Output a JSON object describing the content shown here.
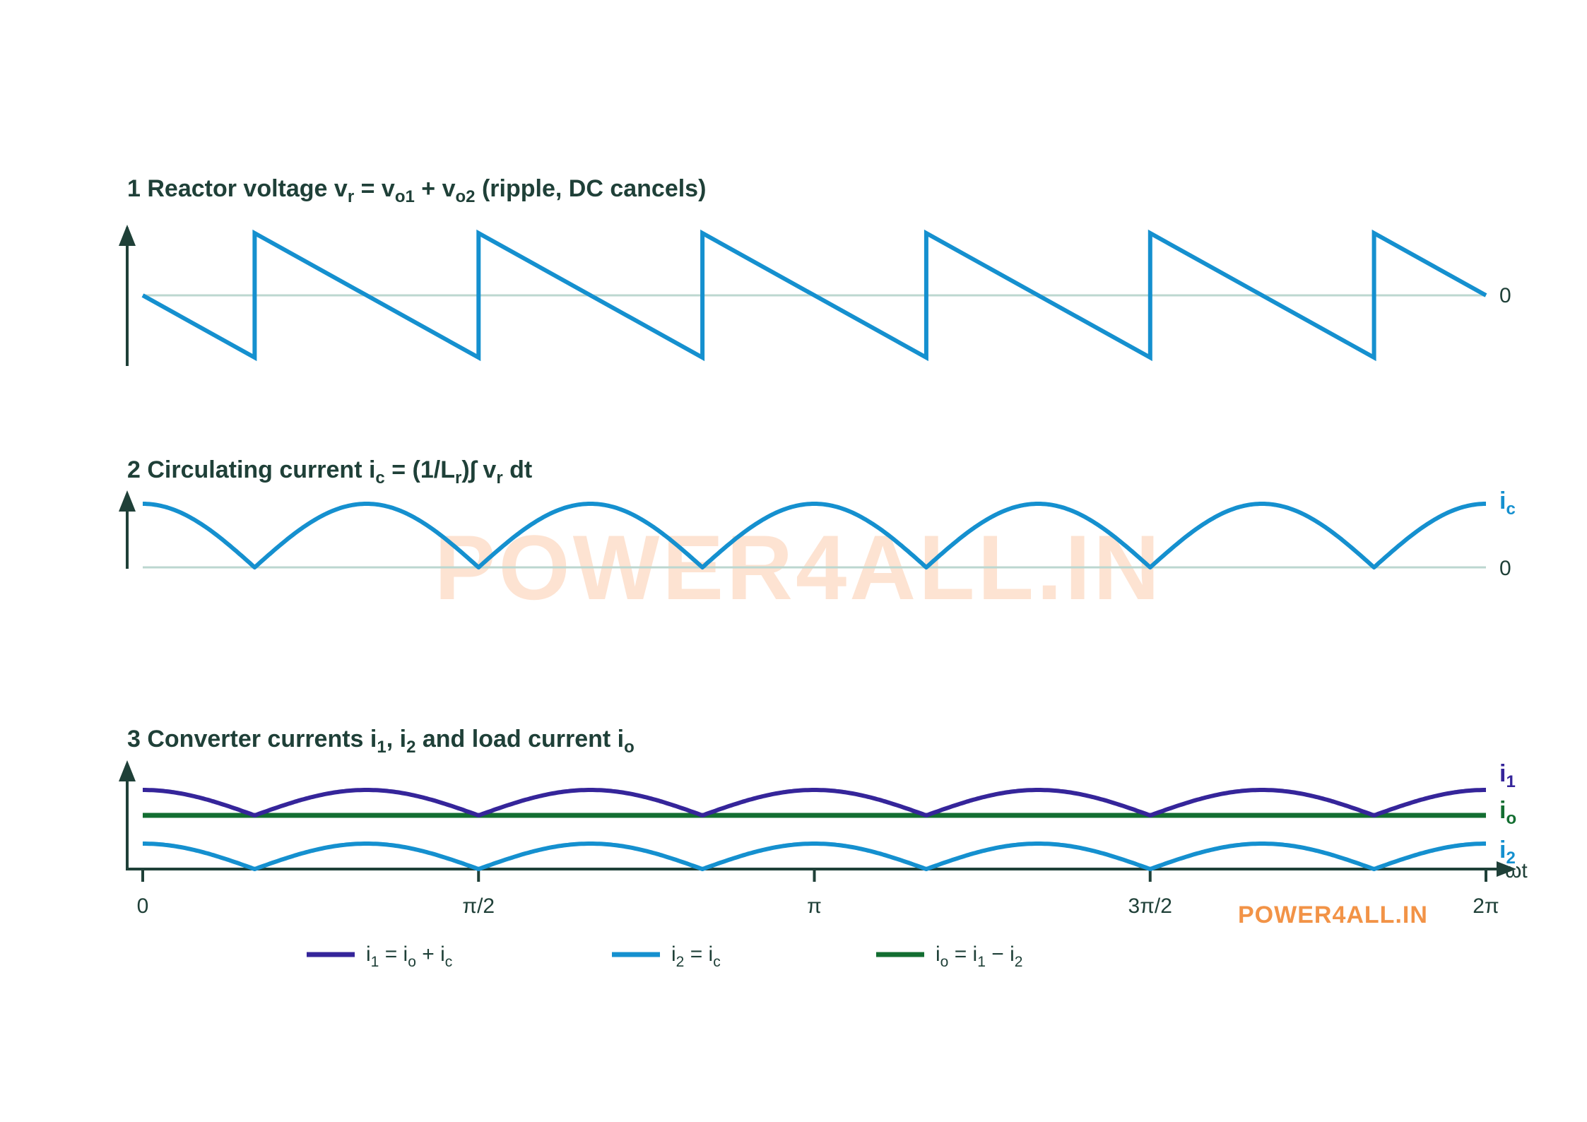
{
  "colors": {
    "axis": "#1f4038",
    "zero_line": "#bcd7d0",
    "vr": "#1590cf",
    "ic": "#1590cf",
    "i1": "#35259a",
    "i2": "#1590cf",
    "io": "#136e31",
    "title": "#1f4038",
    "watermark": "#fde3d2",
    "brand": "#f29347"
  },
  "watermark": "POWER4ALL.IN",
  "brand": "POWER4ALL.IN",
  "panels": [
    {
      "number": "1",
      "title_parts": [
        {
          "t": "Reactor voltage  v"
        },
        {
          "t": "r",
          "sub": true
        },
        {
          "t": " = v"
        },
        {
          "t": "o1",
          "sub": true
        },
        {
          "t": " + v"
        },
        {
          "t": "o2",
          "sub": true
        },
        {
          "t": " (ripple, DC cancels)"
        }
      ],
      "zero_label": "0",
      "series_label_parts": []
    },
    {
      "number": "2",
      "title_parts": [
        {
          "t": "Circulating current  i"
        },
        {
          "t": "c",
          "sub": true
        },
        {
          "t": " = (1/L"
        },
        {
          "t": "r",
          "sub": true
        },
        {
          "t": ")∫ v"
        },
        {
          "t": "r",
          "sub": true
        },
        {
          "t": " dt"
        }
      ],
      "zero_label": "0",
      "series_label_parts": [
        {
          "t": "i"
        },
        {
          "t": "c",
          "sub": true
        }
      ]
    },
    {
      "number": "3",
      "title_parts": [
        {
          "t": "Converter currents  i"
        },
        {
          "t": "1",
          "sub": true
        },
        {
          "t": ", i"
        },
        {
          "t": "2",
          "sub": true
        },
        {
          "t": " and load current  i"
        },
        {
          "t": "o",
          "sub": true
        }
      ],
      "series_labels": [
        {
          "key": "i1",
          "parts": [
            {
              "t": "i"
            },
            {
              "t": "1",
              "sub": true
            }
          ]
        },
        {
          "key": "io",
          "parts": [
            {
              "t": "i"
            },
            {
              "t": "o",
              "sub": true
            }
          ]
        },
        {
          "key": "i2",
          "parts": [
            {
              "t": "i"
            },
            {
              "t": "2",
              "sub": true
            }
          ]
        }
      ]
    }
  ],
  "x_axis": {
    "label": "ωt",
    "ticks": [
      "0",
      "π/2",
      "π",
      "3π/2",
      "2π"
    ]
  },
  "legend": [
    {
      "key": "i1",
      "parts": [
        {
          "t": "i"
        },
        {
          "t": "1",
          "sub": true
        },
        {
          "t": " = i"
        },
        {
          "t": "o",
          "sub": true
        },
        {
          "t": " + i"
        },
        {
          "t": "c",
          "sub": true
        }
      ]
    },
    {
      "key": "i2",
      "parts": [
        {
          "t": "i"
        },
        {
          "t": "2",
          "sub": true
        },
        {
          "t": " = i"
        },
        {
          "t": "c",
          "sub": true
        }
      ]
    },
    {
      "key": "io",
      "parts": [
        {
          "t": "i"
        },
        {
          "t": "o",
          "sub": true
        },
        {
          "t": " = i"
        },
        {
          "t": "1",
          "sub": true
        },
        {
          "t": " − i"
        },
        {
          "t": "2",
          "sub": true
        }
      ]
    }
  ],
  "chart_data": {
    "type": "line",
    "xlabel": "ωt",
    "xlim": [
      0,
      6.2832
    ],
    "x_ticks": [
      0,
      1.5708,
      3.1416,
      4.7124,
      6.2832
    ],
    "x_tick_labels": [
      "0",
      "π/2",
      "π",
      "3π/2",
      "2π"
    ],
    "period": 1.0472,
    "pulse_count_per_cycle": 6,
    "panels": [
      {
        "name": "v_r",
        "shape": "sawtooth",
        "description_values": "x: 0, 0.5236, 0.5236, 1.5708, 1.5708, ... ; linear ramps with vertical jumps at 0.5236 + k·1.0472",
        "x": [
          0,
          0.5236,
          0.5236,
          1.5708,
          1.5708,
          2.618,
          2.618,
          3.6652,
          3.6652,
          4.7124,
          4.7124,
          5.7596,
          5.7596,
          6.2832
        ],
        "y": [
          0,
          -1,
          1,
          -1,
          1,
          -1,
          1,
          -1,
          1,
          -1,
          1,
          -1,
          1,
          0
        ],
        "ylim": [
          -1.1,
          1.1
        ]
      },
      {
        "name": "i_c",
        "shape": "rectified arcs",
        "minima_x": [
          0.5236,
          1.5708,
          2.618,
          3.6652,
          4.7124,
          5.7596
        ],
        "maxima_x": [
          0,
          1.0472,
          2.0944,
          3.1416,
          4.1888,
          5.236,
          6.2832
        ],
        "y_min": 0,
        "y_max": 1,
        "ylim": [
          0,
          1.1
        ]
      },
      {
        "name": "converter currents",
        "series": [
          {
            "name": "i1",
            "shape": "rectified arcs",
            "y_min": 1,
            "y_max": 1.6
          },
          {
            "name": "io",
            "shape": "constant",
            "y": 1
          },
          {
            "name": "i2",
            "shape": "rectified arcs",
            "y_min": 0,
            "y_max": 0.6
          }
        ],
        "ylim": [
          0,
          2
        ]
      }
    ]
  }
}
